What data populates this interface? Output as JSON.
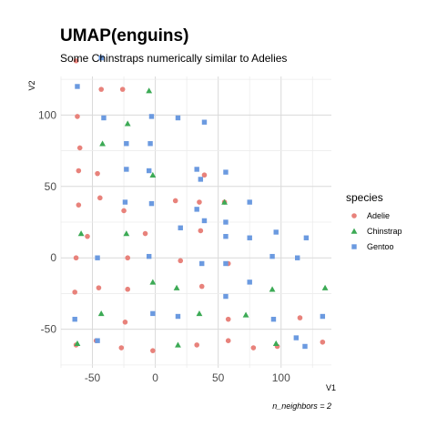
{
  "chart_data": {
    "type": "scatter",
    "title": "UMAP(enguins)",
    "subtitle": "Some Chinstraps numerically similar to Adelies",
    "xlabel": "V1",
    "ylabel": "V2",
    "caption": "n_neighbors = 2",
    "xlim": [
      -75,
      140
    ],
    "ylim": [
      -77,
      127
    ],
    "xticks": [
      -50,
      0,
      50,
      100
    ],
    "yticks": [
      -50,
      0,
      50,
      100
    ],
    "grid": true,
    "legend": {
      "title": "species",
      "position": "right"
    },
    "series": [
      {
        "name": "Adelie",
        "color": "#E8827B",
        "shape": "circle",
        "points": [
          [
            -63,
            138
          ],
          [
            -62,
            99
          ],
          [
            -60,
            77
          ],
          [
            -61,
            61
          ],
          [
            -61,
            37
          ],
          [
            -63,
            0
          ],
          [
            -64,
            -24
          ],
          [
            -63,
            -61
          ],
          [
            -46,
            59
          ],
          [
            -44,
            42
          ],
          [
            -45,
            -21
          ],
          [
            -47,
            -58
          ],
          [
            -54,
            15
          ],
          [
            -43,
            118
          ],
          [
            -26,
            118
          ],
          [
            -25,
            33
          ],
          [
            -22,
            0
          ],
          [
            -22,
            -22
          ],
          [
            -24,
            -45
          ],
          [
            -27,
            -63
          ],
          [
            -8,
            17
          ],
          [
            -2,
            -65
          ],
          [
            16,
            40
          ],
          [
            20,
            -2
          ],
          [
            35,
            39
          ],
          [
            36,
            19
          ],
          [
            37,
            -20
          ],
          [
            33,
            -61
          ],
          [
            39,
            58
          ],
          [
            58,
            -4
          ],
          [
            55,
            39
          ],
          [
            58,
            -43
          ],
          [
            58,
            -58
          ],
          [
            78,
            -63
          ],
          [
            97,
            -62
          ],
          [
            115,
            -42
          ],
          [
            133,
            -59
          ]
        ]
      },
      {
        "name": "Chinstrap",
        "color": "#3CAA55",
        "shape": "triangle",
        "points": [
          [
            -59,
            17
          ],
          [
            -43,
            -39
          ],
          [
            -42,
            80
          ],
          [
            -22,
            94
          ],
          [
            -23,
            17
          ],
          [
            -5,
            117
          ],
          [
            -2,
            58
          ],
          [
            -2,
            -17
          ],
          [
            17,
            -21
          ],
          [
            18,
            -61
          ],
          [
            35,
            -39
          ],
          [
            55,
            39
          ],
          [
            72,
            -40
          ],
          [
            93,
            -22
          ],
          [
            96,
            -60
          ],
          [
            135,
            -21
          ],
          [
            -62,
            -60
          ]
        ]
      },
      {
        "name": "Gentoo",
        "color": "#6B9AE0",
        "shape": "square",
        "points": [
          [
            -43,
            140
          ],
          [
            -62,
            120
          ],
          [
            -41,
            98
          ],
          [
            -23,
            80
          ],
          [
            -23,
            62
          ],
          [
            -24,
            39
          ],
          [
            -46,
            0
          ],
          [
            -46,
            -58
          ],
          [
            -64,
            -43
          ],
          [
            -3,
            99
          ],
          [
            -4,
            80
          ],
          [
            -5,
            61
          ],
          [
            -3,
            38
          ],
          [
            -5,
            1
          ],
          [
            -2,
            -39
          ],
          [
            18,
            98
          ],
          [
            39,
            95
          ],
          [
            20,
            21
          ],
          [
            33,
            62
          ],
          [
            33,
            34
          ],
          [
            36,
            55
          ],
          [
            39,
            26
          ],
          [
            37,
            -4
          ],
          [
            18,
            -41
          ],
          [
            56,
            60
          ],
          [
            56,
            25
          ],
          [
            56,
            15
          ],
          [
            56,
            -27
          ],
          [
            56,
            -4
          ],
          [
            75,
            39
          ],
          [
            75,
            14
          ],
          [
            75,
            -17
          ],
          [
            93,
            1
          ],
          [
            94,
            -43
          ],
          [
            96,
            18
          ],
          [
            113,
            0
          ],
          [
            119,
            -62
          ],
          [
            112,
            -56
          ],
          [
            120,
            14
          ],
          [
            133,
            -41
          ]
        ]
      }
    ]
  }
}
